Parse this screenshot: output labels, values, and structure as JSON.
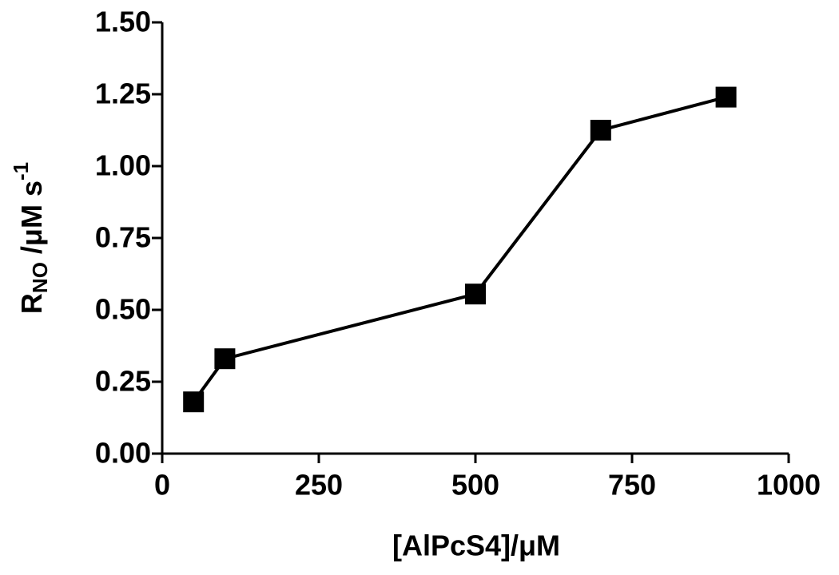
{
  "chart_data": {
    "type": "line",
    "xlabel": "[AlPcS4]/μM",
    "ylabel_parts": [
      "R",
      "NO",
      " /μM s",
      "-1"
    ],
    "x": [
      50,
      100,
      500,
      700,
      900
    ],
    "values": [
      0.18,
      0.33,
      0.555,
      1.125,
      1.24
    ],
    "color": "#000000",
    "marker": "square",
    "xlim": [
      0,
      1000
    ],
    "xticks": [
      0,
      250,
      500,
      750,
      1000
    ],
    "ylim": [
      0,
      1.5
    ],
    "yticks": [
      {
        "value": 0,
        "label": "0.00"
      },
      {
        "value": 0.25,
        "label": "0.25"
      },
      {
        "value": 0.5,
        "label": "0.50"
      },
      {
        "value": 0.75,
        "label": "0.75"
      },
      {
        "value": 1.0,
        "label": "1.00"
      },
      {
        "value": 1.25,
        "label": "1.25"
      },
      {
        "value": 1.5,
        "label": "1.50"
      }
    ]
  }
}
